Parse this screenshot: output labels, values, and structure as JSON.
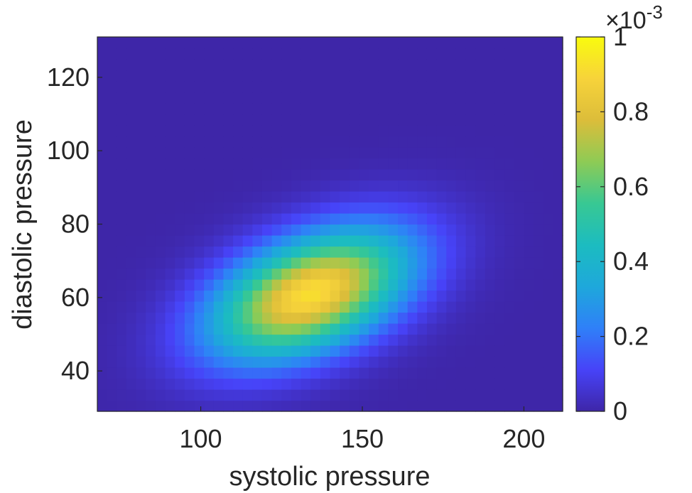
{
  "chart_data": {
    "type": "heatmap",
    "title": "",
    "xlabel": "systolic pressure",
    "ylabel": "diastolic pressure",
    "xlim": [
      68,
      212
    ],
    "ylim": [
      29,
      131
    ],
    "xticks": [
      100,
      150,
      200
    ],
    "yticks": [
      40,
      60,
      80,
      100,
      120
    ],
    "colorbar": {
      "clim": [
        0,
        0.001
      ],
      "ticks": [
        0,
        0.2,
        0.4,
        0.6,
        0.8,
        1
      ],
      "tick_labels": [
        "0",
        "0.2",
        "0.4",
        "0.6",
        "0.8",
        "1"
      ],
      "exponent_label": "×10",
      "exponent_power": "-3",
      "colormap": "parula"
    },
    "grid": false,
    "density_model": {
      "description": "bivariate Gaussian density (peak ~0.00092 at systolic 134, diastolic 61)",
      "peak": 0.00092,
      "mean_x": 134,
      "mean_y": 61,
      "sd_x": 21,
      "sd_y": 12,
      "rho": 0.45
    }
  },
  "colors": {
    "colormap_stops": [
      "#3e26a8",
      "#4743f8",
      "#2f80f8",
      "#1ea8db",
      "#1cbcc0",
      "#38c893",
      "#8ecb55",
      "#dcbd3a",
      "#f7d33a",
      "#f9fb0e"
    ]
  }
}
